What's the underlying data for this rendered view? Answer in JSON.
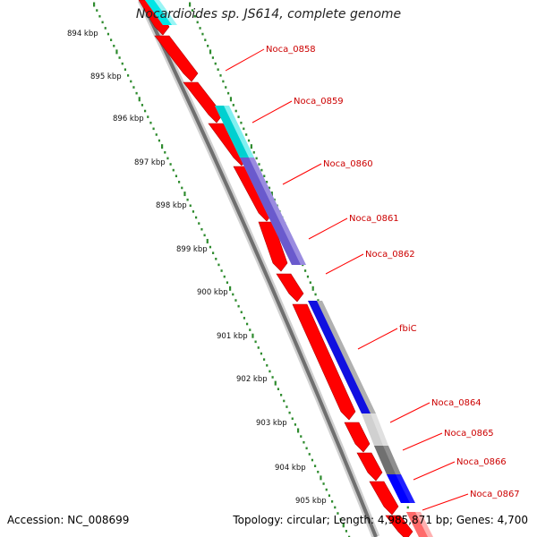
{
  "title": "Nocardioides sp. JS614, complete genome",
  "footer": {
    "accession": "Accession: NC_008699",
    "topology": "Topology: circular; Length: 4,985,871 bp; Genes: 4,700"
  },
  "colors": {
    "cds_forward": "#ff0000",
    "backbone": "#808080",
    "ticks": "#2e8b2e",
    "label_text": "#cc0000",
    "leader_line": "#ff0000"
  },
  "scale_labels": [
    "894 kbp",
    "895 kbp",
    "896 kbp",
    "897 kbp",
    "898 kbp",
    "899 kbp",
    "900 kbp",
    "901 kbp",
    "902 kbp",
    "903 kbp",
    "904 kbp",
    "905 kbp"
  ],
  "gene_labels": [
    "Noca_0858",
    "Noca_0859",
    "Noca_0860",
    "Noca_0861",
    "Noca_0862",
    "fbiC",
    "Noca_0864",
    "Noca_0865",
    "Noca_0866",
    "Noca_0867"
  ]
}
